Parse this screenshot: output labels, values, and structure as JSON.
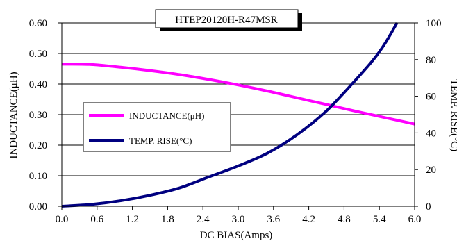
{
  "chart_data": {
    "type": "line",
    "title": "HTEP20120H-R47MSR",
    "xlabel": "DC BIAS(Amps)",
    "ylabel_left": "INDUCTANCE(μH)",
    "ylabel_right": "TEMP. RISE(°C)",
    "xlim": [
      0,
      6
    ],
    "ylim_left": [
      0,
      0.6
    ],
    "ylim_right": [
      0,
      100
    ],
    "x_ticks": [
      "0.0",
      "0.6",
      "1.2",
      "1.8",
      "2.4",
      "3.0",
      "3.6",
      "4.2",
      "4.8",
      "5.4",
      "6.0"
    ],
    "y_left_ticks": [
      "0.00",
      "0.10",
      "0.20",
      "0.30",
      "0.40",
      "0.50",
      "0.60"
    ],
    "y_right_ticks": [
      "0",
      "20",
      "40",
      "60",
      "80",
      "100"
    ],
    "grid": "horizontal",
    "legend_position": "center-left",
    "series": [
      {
        "name": "INDUCTANCE(μH)",
        "axis": "left",
        "color": "#ff00ff",
        "x": [
          0.0,
          0.5,
          1.0,
          1.5,
          2.0,
          2.5,
          3.0,
          3.5,
          4.0,
          4.5,
          5.0,
          5.5,
          6.0
        ],
        "y": [
          0.465,
          0.464,
          0.455,
          0.444,
          0.431,
          0.415,
          0.397,
          0.377,
          0.355,
          0.333,
          0.311,
          0.29,
          0.269
        ]
      },
      {
        "name": "TEMP. RISE(°C)",
        "axis": "right",
        "color": "#000080",
        "x": [
          0.0,
          0.5,
          1.0,
          1.5,
          2.0,
          2.5,
          3.0,
          3.5,
          4.0,
          4.5,
          5.0,
          5.3,
          5.5,
          5.7
        ],
        "y": [
          0,
          1,
          3,
          6,
          10,
          16,
          22,
          29,
          39,
          52,
          69,
          80,
          89,
          100
        ]
      }
    ]
  }
}
